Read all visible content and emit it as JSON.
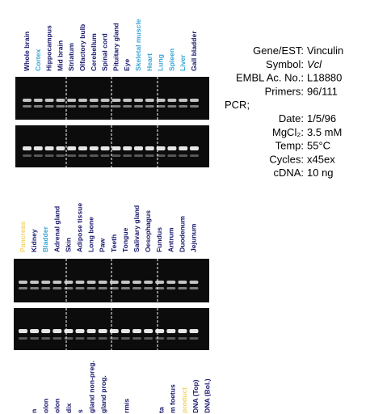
{
  "panels": [
    {
      "lanes": [
        {
          "label": "Whole brain",
          "color": "#1a1a6e"
        },
        {
          "label": "Cortex",
          "color": "#3aa6d6"
        },
        {
          "label": "Hippocampus",
          "color": "#1a1a6e"
        },
        {
          "label": "Mid brain",
          "color": "#1a1a6e"
        },
        {
          "label": "Striatum",
          "color": "#1a1a6e"
        },
        {
          "label": "Olfactory bulb",
          "color": "#1a1a6e"
        },
        {
          "label": "Cerebellum",
          "color": "#1a1a6e"
        },
        {
          "label": "Spinal cord",
          "color": "#1a1a6e"
        },
        {
          "label": "Pituitary gland",
          "color": "#1a1a6e"
        },
        {
          "label": "Eye",
          "color": "#1a1a6e"
        },
        {
          "label": "Skeletal muscle",
          "color": "#3aa6d6"
        },
        {
          "label": "Heart",
          "color": "#3aa6d6"
        },
        {
          "label": "Lung",
          "color": "#3aa6d6"
        },
        {
          "label": "Spleen",
          "color": "#3aa6d6"
        },
        {
          "label": "Liver",
          "color": "#3aa6d6"
        },
        {
          "label": "Gall bladder",
          "color": "#1a1a6e"
        }
      ]
    },
    {
      "lanes": [
        {
          "label": "Pancreas",
          "color": "#f2d36b"
        },
        {
          "label": "Kidney",
          "color": "#1a1a6e"
        },
        {
          "label": "Bladder",
          "color": "#3aa6d6"
        },
        {
          "label": "Adrenal gland",
          "color": "#1a1a6e"
        },
        {
          "label": "Skin",
          "color": "#1a1a6e"
        },
        {
          "label": "Adipose tissue",
          "color": "#1a1a6e"
        },
        {
          "label": "Long bone",
          "color": "#1a1a6e"
        },
        {
          "label": "Paw",
          "color": "#1a1a6e"
        },
        {
          "label": "Teeth",
          "color": "#1a1a6e"
        },
        {
          "label": "Tongue",
          "color": "#1a1a6e"
        },
        {
          "label": "Salivary gland",
          "color": "#1a1a6e"
        },
        {
          "label": "Oesophagus",
          "color": "#1a1a6e"
        },
        {
          "label": "Fundus",
          "color": "#1a1a6e"
        },
        {
          "label": "Antrum",
          "color": "#1a1a6e"
        },
        {
          "label": "Duodenum",
          "color": "#1a1a6e"
        },
        {
          "label": "Jejunum",
          "color": "#1a1a6e"
        }
      ]
    },
    {
      "lanes": [
        {
          "label": "n",
          "color": "#1a1a6e"
        },
        {
          "label": "olon",
          "color": "#1a1a6e"
        },
        {
          "label": "olon",
          "color": "#1a1a6e"
        },
        {
          "label": "dix",
          "color": "#1a1a6e"
        },
        {
          "label": "s",
          "color": "#1a1a6e"
        },
        {
          "label": "gland non-preg.",
          "color": "#1a1a6e"
        },
        {
          "label": "gland prog.",
          "color": "#1a1a6e"
        },
        {
          "label": null,
          "color": "#1a1a6e"
        },
        {
          "label": "rmis",
          "color": "#1a1a6e"
        },
        {
          "label": null,
          "color": "#1a1a6e"
        },
        {
          "label": null,
          "color": "#1a1a6e"
        },
        {
          "label": "ta",
          "color": "#1a1a6e"
        },
        {
          "label": "m foetus",
          "color": "#1a1a6e"
        },
        {
          "label": "product",
          "color": "#f2d36b"
        },
        {
          "label": "DNA (Top)",
          "color": "#1a1a6e"
        },
        {
          "label": "DNA (Bol.)",
          "color": "#1a1a6e"
        }
      ]
    }
  ],
  "info": {
    "rows": [
      {
        "label": "Gene/EST:",
        "value": "Vinculin"
      },
      {
        "label": "Symbol:",
        "value": "Vcl"
      },
      {
        "label": "EMBL Ac. No.:",
        "value": "L18880"
      },
      {
        "label": "Primers:",
        "value": "96/111"
      }
    ],
    "pcr_heading": "PCR;",
    "pcr_rows": [
      {
        "label": "Date:",
        "value": "1/5/96"
      },
      {
        "label": "MgCl₂:",
        "value": "3.5 mM"
      },
      {
        "label": "Temp:",
        "value": "55°C"
      },
      {
        "label": "Cycles:",
        "value": "x45ex"
      },
      {
        "label": "cDNA:",
        "value": "10 ng"
      }
    ]
  }
}
